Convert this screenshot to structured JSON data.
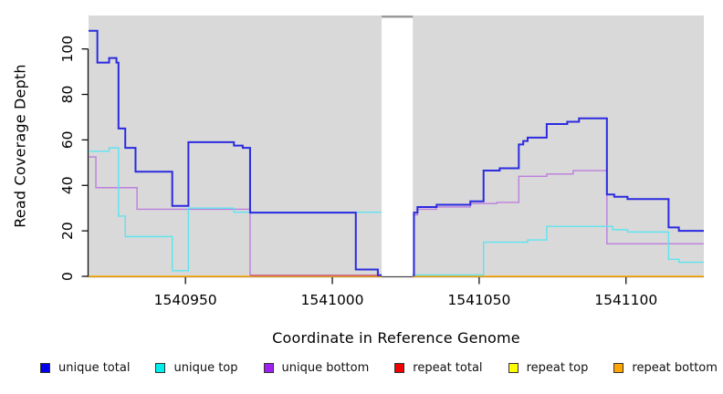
{
  "chart_data": {
    "type": "line",
    "subtype": "step",
    "title": "",
    "xlabel": "Coordinate in Reference Genome",
    "ylabel": "Read Coverage Depth",
    "xlim": [
      1540917,
      1541126.5
    ],
    "ylim": [
      0,
      114.7
    ],
    "x_ticks": [
      1540950,
      1541000,
      1541050,
      1541100
    ],
    "y_ticks": [
      0,
      20,
      40,
      60,
      80,
      100
    ],
    "grid": false,
    "plot_bg_color": "#d9d9d9",
    "axis_color": "#111111",
    "gap": {
      "x_start": 1541016.8,
      "x_end": 1541027.4,
      "top_strip_color": "#9a9a9a"
    },
    "legend_position": "bottom",
    "draw_order": [
      4,
      5,
      2,
      3,
      1,
      0
    ],
    "series": [
      {
        "name": "unique total",
        "color": "#2b2be0",
        "line_width": 2,
        "segments": [
          {
            "points": [
              [
                1540917,
                108
              ],
              [
                1540920,
                94
              ],
              [
                1540924,
                96
              ],
              [
                1540926.5,
                94
              ],
              [
                1540927.2,
                65
              ],
              [
                1540929.5,
                56.5
              ],
              [
                1540933,
                46
              ],
              [
                1540945.5,
                31
              ],
              [
                1540951,
                59
              ],
              [
                1540966.5,
                57.5
              ],
              [
                1540969.5,
                56.5
              ],
              [
                1540972,
                28
              ],
              [
                1541008,
                3
              ],
              [
                1541015.5,
                0.5
              ]
            ],
            "x_end": 1541016.8
          },
          {
            "points": [
              [
                1541027.4,
                0.5
              ],
              [
                1541027.8,
                28
              ],
              [
                1541029,
                30.5
              ],
              [
                1541035.5,
                31.5
              ],
              [
                1541047,
                33
              ],
              [
                1541051.5,
                46.5
              ],
              [
                1541057,
                47.5
              ],
              [
                1541063.5,
                58
              ],
              [
                1541065,
                59.5
              ],
              [
                1541066.5,
                61
              ],
              [
                1541073,
                67
              ],
              [
                1541080,
                68
              ],
              [
                1541084,
                69.5
              ],
              [
                1541093.5,
                36
              ],
              [
                1541096,
                35
              ],
              [
                1541100.5,
                34
              ],
              [
                1541114.5,
                21.5
              ],
              [
                1541118,
                20
              ]
            ],
            "x_end": 1541126.5
          }
        ]
      },
      {
        "name": "unique top",
        "color": "#5ee4ef",
        "line_width": 1.4,
        "segments": [
          {
            "points": [
              [
                1540917,
                55
              ],
              [
                1540924,
                56.5
              ],
              [
                1540927.2,
                26.5
              ],
              [
                1540929.5,
                17.5
              ],
              [
                1540945.5,
                2.5
              ],
              [
                1540951,
                30
              ],
              [
                1540966.5,
                28.2
              ]
            ],
            "x_end": 1541016.8
          },
          {
            "points": [
              [
                1541027.4,
                0.6
              ],
              [
                1541051.5,
                15
              ],
              [
                1541066.5,
                16
              ],
              [
                1541073,
                22
              ],
              [
                1541095.5,
                20.5
              ],
              [
                1541100.5,
                19.5
              ],
              [
                1541114.5,
                7.5
              ],
              [
                1541118,
                6.2
              ]
            ],
            "x_end": 1541126.5
          }
        ]
      },
      {
        "name": "unique bottom",
        "color": "#bd7ede",
        "line_width": 1.4,
        "segments": [
          {
            "points": [
              [
                1540917,
                52.5
              ],
              [
                1540919.5,
                39
              ],
              [
                1540933.5,
                29.5
              ],
              [
                1540972,
                0.45
              ]
            ],
            "x_end": 1541016.8
          },
          {
            "points": [
              [
                1541027.4,
                0.45
              ],
              [
                1541027.8,
                27
              ],
              [
                1541029,
                29.5
              ],
              [
                1541035.5,
                30.5
              ],
              [
                1541047,
                32
              ],
              [
                1541056,
                32.5
              ],
              [
                1541063.5,
                44
              ],
              [
                1541073,
                45
              ],
              [
                1541082,
                46.5
              ],
              [
                1541093.5,
                14.3
              ]
            ],
            "x_end": 1541126.5
          }
        ]
      },
      {
        "name": "repeat total",
        "color": "#cb5f7d",
        "line_width": 1.3,
        "segments": [
          {
            "points": [
              [
                1540972,
                0.45
              ]
            ],
            "x_end": 1541016.8
          }
        ]
      },
      {
        "name": "repeat top",
        "color": "#f5e642",
        "line_width": 1.3,
        "segments": [
          {
            "points": [
              [
                1540917,
                0
              ]
            ],
            "x_end": 1541016.8
          },
          {
            "points": [
              [
                1541027.4,
                0
              ]
            ],
            "x_end": 1541126.5
          }
        ]
      },
      {
        "name": "repeat bottom",
        "color": "#ffa500",
        "line_width": 1.6,
        "segments": [
          {
            "points": [
              [
                1540917,
                0
              ]
            ],
            "x_end": 1541016.8
          },
          {
            "points": [
              [
                1541027.4,
                0
              ]
            ],
            "x_end": 1541126.5
          }
        ]
      }
    ]
  },
  "legend": {
    "items": [
      {
        "label": "unique total",
        "swatch_color": "#0000ee"
      },
      {
        "label": "unique top",
        "swatch_color": "#00eeee"
      },
      {
        "label": "unique bottom",
        "swatch_color": "#a020f0"
      },
      {
        "label": "repeat total",
        "swatch_color": "#ee0000"
      },
      {
        "label": "repeat top",
        "swatch_color": "#ffff00"
      },
      {
        "label": "repeat bottom",
        "swatch_color": "#ffa500"
      }
    ]
  }
}
